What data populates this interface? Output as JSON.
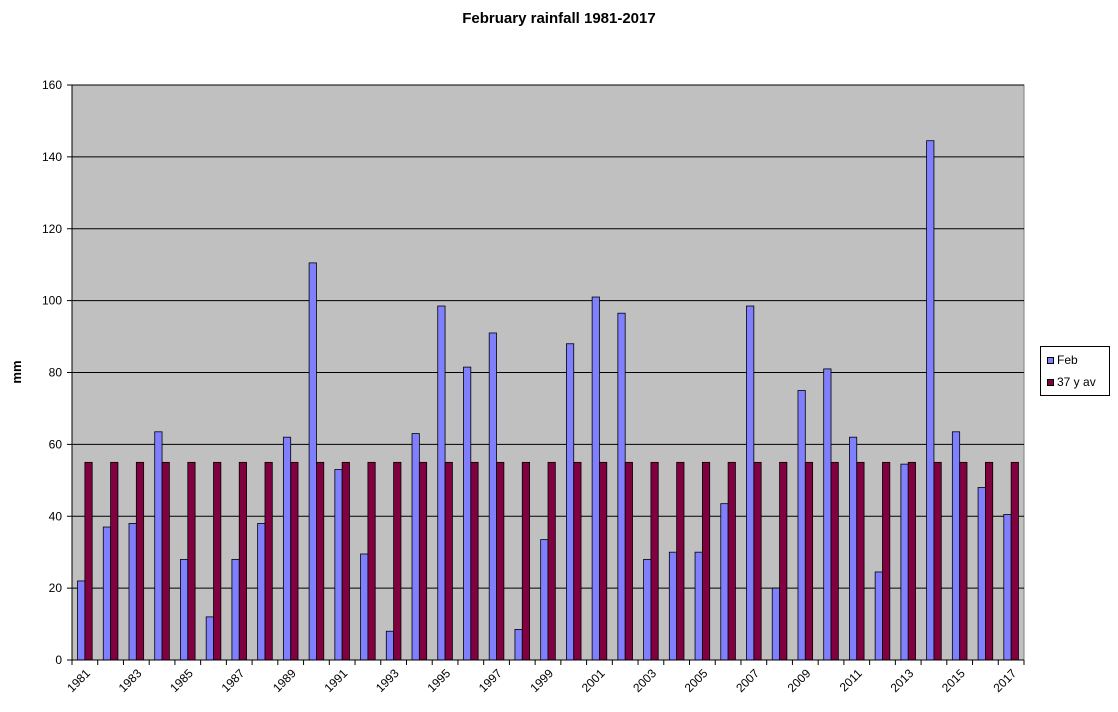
{
  "chart_data": {
    "type": "bar",
    "title": "February rainfall 1981-2017",
    "ylabel": "mm",
    "xlabel": "",
    "ylim": [
      0,
      160
    ],
    "yticks": [
      0,
      20,
      40,
      60,
      80,
      100,
      120,
      140,
      160
    ],
    "grid": true,
    "legend_position": "right",
    "categories": [
      "1981",
      "1982",
      "1983",
      "1984",
      "1985",
      "1986",
      "1987",
      "1988",
      "1989",
      "1990",
      "1991",
      "1992",
      "1993",
      "1994",
      "1995",
      "1996",
      "1997",
      "1998",
      "1999",
      "2000",
      "2001",
      "2002",
      "2003",
      "2004",
      "2005",
      "2006",
      "2007",
      "2008",
      "2009",
      "2010",
      "2011",
      "2012",
      "2013",
      "2014",
      "2015",
      "2016",
      "2017"
    ],
    "tick_labels": [
      "1981",
      "1983",
      "1985",
      "1987",
      "1989",
      "1991",
      "1993",
      "1995",
      "1997",
      "1999",
      "2001",
      "2003",
      "2005",
      "2007",
      "2009",
      "2011",
      "2013",
      "2015",
      "2017"
    ],
    "series": [
      {
        "name": "Feb",
        "color": "#8080ff",
        "values": [
          22,
          37,
          38,
          63.5,
          28,
          12,
          28,
          38,
          62,
          110.5,
          53,
          29.5,
          8,
          63,
          98.5,
          81.5,
          91,
          8.5,
          33.5,
          88,
          101,
          96.5,
          28,
          30,
          30,
          43.5,
          98.5,
          20,
          75,
          81,
          62,
          24.5,
          54.5,
          144.5,
          63.5,
          48,
          40.5
        ]
      },
      {
        "name": "37 y av",
        "color": "#800040",
        "values": [
          55,
          55,
          55,
          55,
          55,
          55,
          55,
          55,
          55,
          55,
          55,
          55,
          55,
          55,
          55,
          55,
          55,
          55,
          55,
          55,
          55,
          55,
          55,
          55,
          55,
          55,
          55,
          55,
          55,
          55,
          55,
          55,
          55,
          55,
          55,
          55,
          55
        ]
      }
    ]
  }
}
